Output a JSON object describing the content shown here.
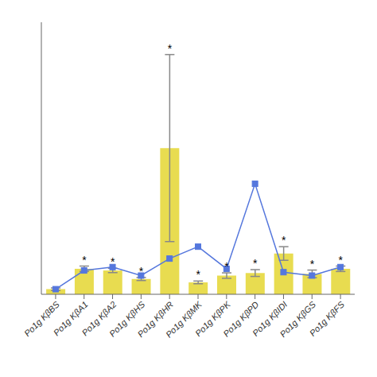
{
  "chart_data": {
    "type": "bar",
    "categories": [
      "Po1g KβBS",
      "Po1g KβA1",
      "Po1g KβA2",
      "Po1g KβHS",
      "Po1g KβHR",
      "Po1g KβMK",
      "Po1g KβPK",
      "Po1g KβPD",
      "Po1g KβIDI",
      "Po1g KβGS",
      "Po1g KβFS"
    ],
    "series": [
      {
        "type": "bar",
        "color": "#E8DC50",
        "values": [
          0.06,
          0.3,
          0.28,
          0.18,
          1.72,
          0.14,
          0.22,
          0.25,
          0.48,
          0.24,
          0.3
        ],
        "errors": [
          0.015,
          0.032,
          0.025,
          0.018,
          1.1,
          0.016,
          0.032,
          0.04,
          0.08,
          0.045,
          0.032
        ]
      },
      {
        "type": "line",
        "color": "#5577DD",
        "marker": "square",
        "values": [
          0.06,
          0.28,
          0.32,
          0.22,
          0.42,
          0.56,
          0.3,
          1.3,
          0.26,
          0.22,
          0.32
        ]
      }
    ],
    "annotations": [
      {
        "text": "*",
        "category": "Po1g KβA1"
      },
      {
        "text": "*",
        "category": "Po1g KβA2"
      },
      {
        "text": "*",
        "category": "Po1g KβHS"
      },
      {
        "text": "*",
        "category": "Po1g KβHR"
      },
      {
        "text": "*",
        "category": "Po1g KβMK"
      },
      {
        "text": "*",
        "category": "Po1g KβPK"
      },
      {
        "text": "*",
        "category": "Po1g KβPD"
      },
      {
        "text": "*",
        "category": "Po1g KβIDI"
      },
      {
        "text": "*",
        "category": "Po1g KβGS"
      },
      {
        "text": "*",
        "category": "Po1g KβFS"
      }
    ],
    "ylim": [
      0,
      3.2
    ],
    "tick_labels": "x",
    "grid": false
  }
}
